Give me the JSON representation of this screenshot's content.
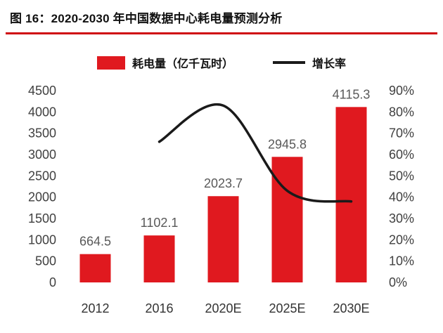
{
  "header": {
    "title": "图 16：2020-2030 年中国数据中心耗电量预测分析"
  },
  "colors": {
    "bar_red": "#e0191f",
    "rule_red": "#cf0b12",
    "line_black": "#1a1a1a",
    "value_label_gray": "#595959",
    "axis_text": "#404040"
  },
  "chart_data": {
    "type": "combo-bar-line",
    "title": "图 16：2020-2030 年中国数据中心耗电量预测分析",
    "categories": [
      "2012",
      "2016",
      "2020E",
      "2025E",
      "2030E"
    ],
    "series": [
      {
        "name": "耗电量（亿千瓦时）",
        "type": "bar",
        "axis": "left",
        "color": "#e0191f",
        "values": [
          664.5,
          1102.1,
          2023.7,
          2945.8,
          4115.3
        ],
        "labels": [
          "664.5",
          "1102.1",
          "2023.7",
          "2945.8",
          "4115.3"
        ]
      },
      {
        "name": "增长率",
        "type": "line",
        "axis": "right",
        "color": "#1a1a1a",
        "values": [
          null,
          66,
          83,
          43,
          38
        ]
      }
    ],
    "left_axis": {
      "min": 0,
      "max": 4500,
      "step": 500
    },
    "right_axis": {
      "min": 0,
      "max": 90,
      "step": 10,
      "suffix": "%"
    },
    "grid": false,
    "legend_position": "top"
  }
}
